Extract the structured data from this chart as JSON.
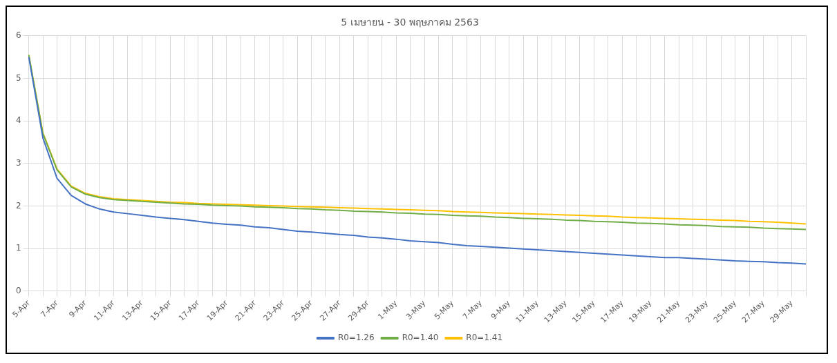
{
  "chart_data": {
    "type": "line",
    "title": "5 เมษายน - 30 พฤษภาคม 2563",
    "categories": [
      "5-Apr",
      null,
      "7-Apr",
      null,
      "9-Apr",
      null,
      "11-Apr",
      null,
      "13-Apr",
      null,
      "15-Apr",
      null,
      "17-Apr",
      null,
      "19-Apr",
      null,
      "21-Apr",
      null,
      "23-Apr",
      null,
      "25-Apr",
      null,
      "27-Apr",
      null,
      "29-Apr",
      null,
      "1-May",
      null,
      "3-May",
      null,
      "5-May",
      null,
      "7-May",
      null,
      "9-May",
      null,
      "11-May",
      null,
      "13-May",
      null,
      "15-May",
      null,
      "17-May",
      null,
      "19-May",
      null,
      "21-May",
      null,
      "23-May",
      null,
      "25-May",
      null,
      "27-May",
      null,
      "29-May",
      null
    ],
    "series": [
      {
        "name": "R0=1.26",
        "color": "#4472c4",
        "values": [
          5.5,
          3.6,
          2.65,
          2.25,
          2.05,
          1.93,
          1.86,
          1.82,
          1.78,
          1.74,
          1.71,
          1.68,
          1.64,
          1.6,
          1.57,
          1.55,
          1.51,
          1.49,
          1.45,
          1.41,
          1.39,
          1.36,
          1.33,
          1.31,
          1.27,
          1.25,
          1.22,
          1.18,
          1.16,
          1.14,
          1.1,
          1.07,
          1.05,
          1.03,
          1.01,
          0.99,
          0.97,
          0.95,
          0.93,
          0.91,
          0.89,
          0.87,
          0.85,
          0.83,
          0.81,
          0.79,
          0.79,
          0.77,
          0.75,
          0.73,
          0.71,
          0.7,
          0.69,
          0.67,
          0.66,
          0.64
        ]
      },
      {
        "name": "R0=1.40",
        "color": "#70ad47",
        "values": [
          5.55,
          3.7,
          2.85,
          2.45,
          2.28,
          2.2,
          2.15,
          2.13,
          2.11,
          2.09,
          2.07,
          2.05,
          2.04,
          2.02,
          2.01,
          2.0,
          1.98,
          1.97,
          1.96,
          1.94,
          1.93,
          1.91,
          1.9,
          1.88,
          1.87,
          1.86,
          1.84,
          1.83,
          1.81,
          1.8,
          1.78,
          1.77,
          1.76,
          1.74,
          1.73,
          1.71,
          1.7,
          1.69,
          1.67,
          1.66,
          1.64,
          1.63,
          1.62,
          1.6,
          1.59,
          1.58,
          1.56,
          1.55,
          1.54,
          1.52,
          1.51,
          1.5,
          1.48,
          1.47,
          1.46,
          1.45
        ]
      },
      {
        "name": "R0=1.41",
        "color": "#ffc000",
        "values": [
          5.55,
          3.72,
          2.87,
          2.47,
          2.3,
          2.22,
          2.17,
          2.15,
          2.13,
          2.11,
          2.09,
          2.08,
          2.06,
          2.05,
          2.04,
          2.03,
          2.02,
          2.01,
          2.0,
          1.99,
          1.98,
          1.97,
          1.96,
          1.95,
          1.94,
          1.93,
          1.92,
          1.91,
          1.9,
          1.89,
          1.87,
          1.86,
          1.85,
          1.84,
          1.83,
          1.82,
          1.81,
          1.8,
          1.79,
          1.78,
          1.77,
          1.76,
          1.74,
          1.73,
          1.72,
          1.71,
          1.7,
          1.69,
          1.68,
          1.67,
          1.66,
          1.64,
          1.63,
          1.62,
          1.6,
          1.58
        ]
      }
    ],
    "ylim": [
      0,
      6
    ],
    "yticks": [
      0,
      1,
      2,
      3,
      4,
      5,
      6
    ],
    "grid": true,
    "legend": "bottom",
    "marker": "none",
    "line_style": "solid"
  }
}
